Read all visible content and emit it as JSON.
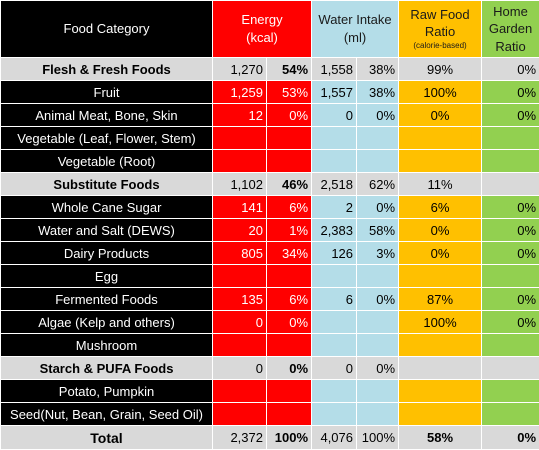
{
  "headers": {
    "food_category": "Food Category",
    "energy": "Energy",
    "energy_unit": "(kcal)",
    "water": "Water Intake",
    "water_unit": "(ml)",
    "raw": "Raw Food Ratio",
    "raw_sub": "(calorie-based)",
    "garden": "Home Garden Ratio"
  },
  "rows": [
    {
      "type": "summary",
      "name": "Flesh & Fresh Foods",
      "e": "1,270",
      "ep": "54%",
      "w": "1,558",
      "wp": "38%",
      "r": "99%",
      "g": "0%"
    },
    {
      "type": "detail",
      "name": "Fruit",
      "e": "1,259",
      "ep": "53%",
      "w": "1,557",
      "wp": "38%",
      "r": "100%",
      "g": "0%"
    },
    {
      "type": "detail",
      "name": "Animal Meat, Bone, Skin",
      "e": "12",
      "ep": "0%",
      "w": "0",
      "wp": "0%",
      "r": "0%",
      "g": "0%"
    },
    {
      "type": "detail",
      "name": "Vegetable (Leaf, Flower, Stem)",
      "e": "",
      "ep": "",
      "w": "",
      "wp": "",
      "r": "",
      "g": ""
    },
    {
      "type": "detail",
      "name": "Vegetable (Root)",
      "e": "",
      "ep": "",
      "w": "",
      "wp": "",
      "r": "",
      "g": ""
    },
    {
      "type": "summary",
      "name": "Substitute Foods",
      "e": "1,102",
      "ep": "46%",
      "w": "2,518",
      "wp": "62%",
      "r": "11%",
      "g": ""
    },
    {
      "type": "detail",
      "name": "Whole Cane Sugar",
      "e": "141",
      "ep": "6%",
      "w": "2",
      "wp": "0%",
      "r": "6%",
      "g": "0%"
    },
    {
      "type": "detail",
      "name": "Water and Salt (DEWS)",
      "e": "20",
      "ep": "1%",
      "w": "2,383",
      "wp": "58%",
      "r": "0%",
      "g": "0%"
    },
    {
      "type": "detail",
      "name": "Dairy Products",
      "e": "805",
      "ep": "34%",
      "w": "126",
      "wp": "3%",
      "r": "0%",
      "g": "0%"
    },
    {
      "type": "detail",
      "name": "Egg",
      "e": "",
      "ep": "",
      "w": "",
      "wp": "",
      "r": "",
      "g": ""
    },
    {
      "type": "detail",
      "name": "Fermented Foods",
      "e": "135",
      "ep": "6%",
      "w": "6",
      "wp": "0%",
      "r": "87%",
      "g": "0%"
    },
    {
      "type": "detail",
      "name": "Algae (Kelp and others)",
      "e": "0",
      "ep": "0%",
      "w": "",
      "wp": "",
      "r": "100%",
      "g": "0%"
    },
    {
      "type": "detail",
      "name": "Mushroom",
      "e": "",
      "ep": "",
      "w": "",
      "wp": "",
      "r": "",
      "g": ""
    },
    {
      "type": "summary",
      "name": "Starch & PUFA Foods",
      "e": "0",
      "ep": "0%",
      "w": "0",
      "wp": "0%",
      "r": "",
      "g": ""
    },
    {
      "type": "detail",
      "name": "Potato, Pumpkin",
      "e": "",
      "ep": "",
      "w": "",
      "wp": "",
      "r": "",
      "g": ""
    },
    {
      "type": "detail",
      "name": "Seed(Nut, Bean, Grain, Seed Oil)",
      "e": "",
      "ep": "",
      "w": "",
      "wp": "",
      "r": "",
      "g": ""
    },
    {
      "type": "total",
      "name": "Total",
      "e": "2,372",
      "ep": "100%",
      "w": "4,076",
      "wp": "100%",
      "r": "58%",
      "g": "0%"
    }
  ]
}
